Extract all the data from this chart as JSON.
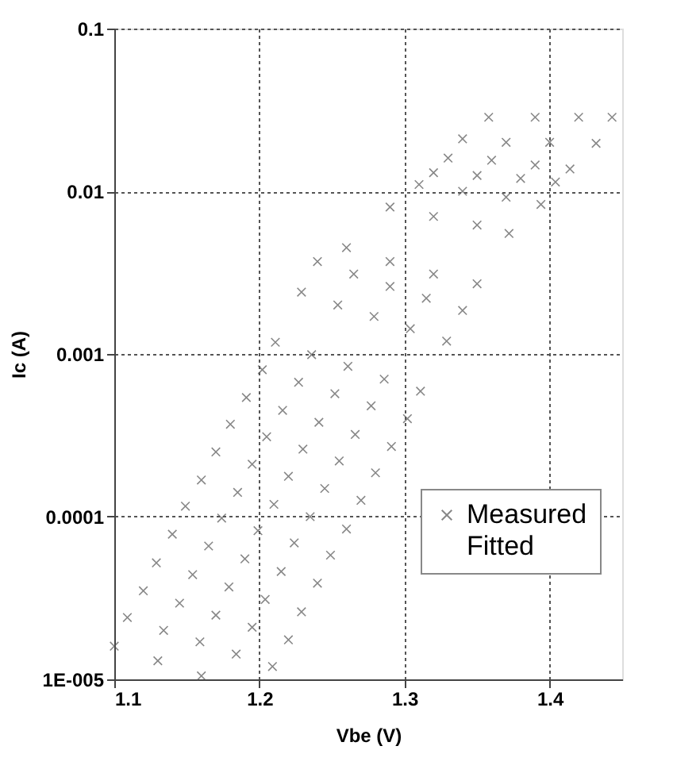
{
  "chart_data": {
    "type": "scatter",
    "xlabel": "Vbe (V)",
    "ylabel": "Ic (A)",
    "log": "y",
    "xlim": [
      1.1,
      1.45
    ],
    "xticks": [
      1.1,
      1.2,
      1.3,
      1.4
    ],
    "ylim": [
      1e-05,
      0.1
    ],
    "yticks": [
      {
        "value": 1e-05,
        "label": "1E-005"
      },
      {
        "value": 0.0001,
        "label": "0.0001"
      },
      {
        "value": 0.001,
        "label": "0.001"
      },
      {
        "value": 0.01,
        "label": "0.01"
      },
      {
        "value": 0.1,
        "label": "0.1"
      }
    ],
    "grid": true,
    "legend": "bottom right",
    "series": [
      {
        "name": "Measured",
        "type": "scatter",
        "marker": "cross",
        "color": "#555555",
        "x": [
          1.1,
          1.13,
          1.16,
          1.109,
          1.134,
          1.159,
          1.184,
          1.209,
          1.12,
          1.145,
          1.17,
          1.195,
          1.22,
          1.129,
          1.154,
          1.179,
          1.204,
          1.229,
          1.14,
          1.165,
          1.19,
          1.215,
          1.24,
          1.149,
          1.174,
          1.199,
          1.224,
          1.249,
          1.16,
          1.185,
          1.21,
          1.235,
          1.26,
          1.17,
          1.195,
          1.22,
          1.245,
          1.27,
          1.18,
          1.205,
          1.23,
          1.255,
          1.28,
          1.191,
          1.216,
          1.241,
          1.266,
          1.291,
          1.202,
          1.227,
          1.252,
          1.277,
          1.302,
          1.211,
          1.236,
          1.261,
          1.286,
          1.311,
          1.229,
          1.254,
          1.279,
          1.304,
          1.329,
          1.24,
          1.265,
          1.29,
          1.315,
          1.34,
          1.26,
          1.29,
          1.32,
          1.35,
          1.29,
          1.32,
          1.35,
          1.372,
          1.31,
          1.34,
          1.37,
          1.394,
          1.32,
          1.35,
          1.38,
          1.404,
          1.33,
          1.36,
          1.39,
          1.414,
          1.34,
          1.37,
          1.4,
          1.432,
          1.358,
          1.39,
          1.42,
          1.443
        ],
        "values": [
          1.6e-05,
          1.3e-05,
          1.05e-05,
          2.4e-05,
          2e-05,
          1.7e-05,
          1.43e-05,
          1.2e-05,
          3.5e-05,
          2.94e-05,
          2.48e-05,
          2.09e-05,
          1.75e-05,
          5.2e-05,
          4.4e-05,
          3.7e-05,
          3.1e-05,
          2.6e-05,
          7.8e-05,
          6.6e-05,
          5.5e-05,
          4.6e-05,
          3.9e-05,
          0.000116,
          9.8e-05,
          8.2e-05,
          6.9e-05,
          5.8e-05,
          0.000168,
          0.000141,
          0.000119,
          0.0001,
          8.4e-05,
          0.00025,
          0.00021,
          0.000177,
          0.000149,
          0.000126,
          0.00037,
          0.00031,
          0.00026,
          0.00022,
          0.000186,
          0.00054,
          0.00045,
          0.00038,
          0.00032,
          0.00027,
          0.0008,
          0.00067,
          0.00057,
          0.00048,
          0.0004,
          0.00118,
          0.00099,
          0.00084,
          0.0007,
          0.00059,
          0.0024,
          0.002,
          0.0017,
          0.00143,
          0.0012,
          0.0037,
          0.0031,
          0.0026,
          0.0022,
          0.00185,
          0.0045,
          0.0037,
          0.0031,
          0.0027,
          0.008,
          0.007,
          0.0062,
          0.0055,
          0.011,
          0.01,
          0.0092,
          0.0083,
          0.013,
          0.0125,
          0.012,
          0.0114,
          0.016,
          0.0155,
          0.0145,
          0.0137,
          0.021,
          0.02,
          0.02,
          0.0197,
          0.0285,
          0.0285,
          0.0285,
          0.0285
        ]
      },
      {
        "name": "Fitted",
        "type": "line"
      }
    ]
  }
}
